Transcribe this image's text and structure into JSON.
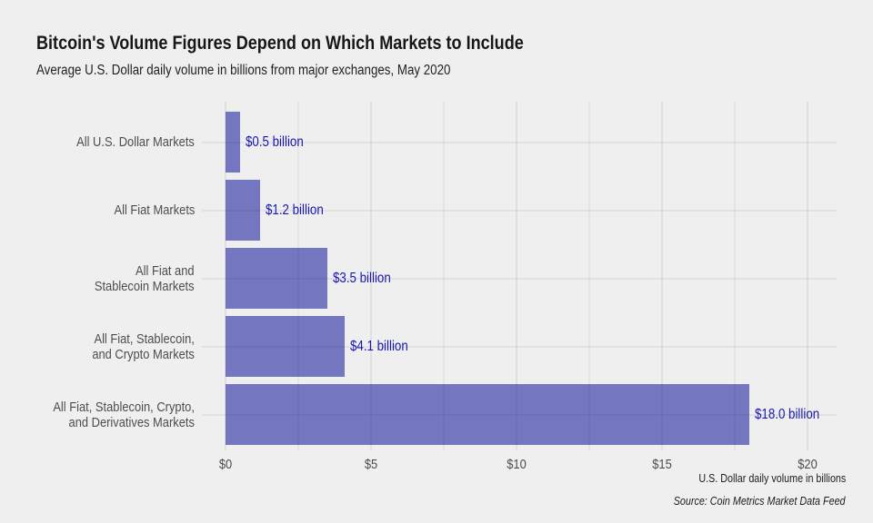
{
  "header": {
    "title": "Bitcoin's Volume Figures Depend on Which Markets to Include",
    "subtitle": "Average U.S. Dollar daily volume in billions from major exchanges, May 2020"
  },
  "chart_data": {
    "type": "bar",
    "orientation": "horizontal",
    "title": "Bitcoin's Volume Figures Depend on Which Markets to Include",
    "subtitle": "Average U.S. Dollar daily volume in billions from major exchanges, May 2020",
    "categories": [
      "All U.S. Dollar Markets",
      "All Fiat Markets",
      "All Fiat and Stablecoin Markets",
      "All Fiat, Stablecoin, and Crypto Markets",
      "All Fiat, Stablecoin, Crypto, and Derivatives Markets"
    ],
    "category_label_lines": [
      [
        "All U.S. Dollar Markets"
      ],
      [
        "All Fiat Markets"
      ],
      [
        "All Fiat and",
        "Stablecoin Markets"
      ],
      [
        "All Fiat, Stablecoin,",
        "and Crypto Markets"
      ],
      [
        "All Fiat, Stablecoin, Crypto,",
        "and Derivatives Markets"
      ]
    ],
    "values": [
      0.5,
      1.2,
      3.5,
      4.1,
      18.0
    ],
    "value_labels": [
      "$0.5 billion",
      "$1.2 billion",
      "$3.5 billion",
      "$4.1 billion",
      "$18.0 billion"
    ],
    "x_axis": {
      "range": [
        0,
        20
      ],
      "ticks": [
        0,
        5,
        10,
        15,
        20
      ],
      "tick_labels": [
        "$0",
        "$5",
        "$10",
        "$15",
        "$20"
      ],
      "minor_ticks": [
        2.5,
        7.5,
        12.5,
        17.5
      ],
      "label": "U.S. Dollar daily volume in billions"
    },
    "grid": "on",
    "source": "Source: Coin Metrics Market Data Feed",
    "colors": {
      "background": "#efefef",
      "bar": "#7477c0",
      "value_label": "#1717b0",
      "category_label": "#4d4d4d",
      "tick_label": "#4d4d4d",
      "gridline": "#dfdfdf",
      "title": "#161616"
    }
  }
}
